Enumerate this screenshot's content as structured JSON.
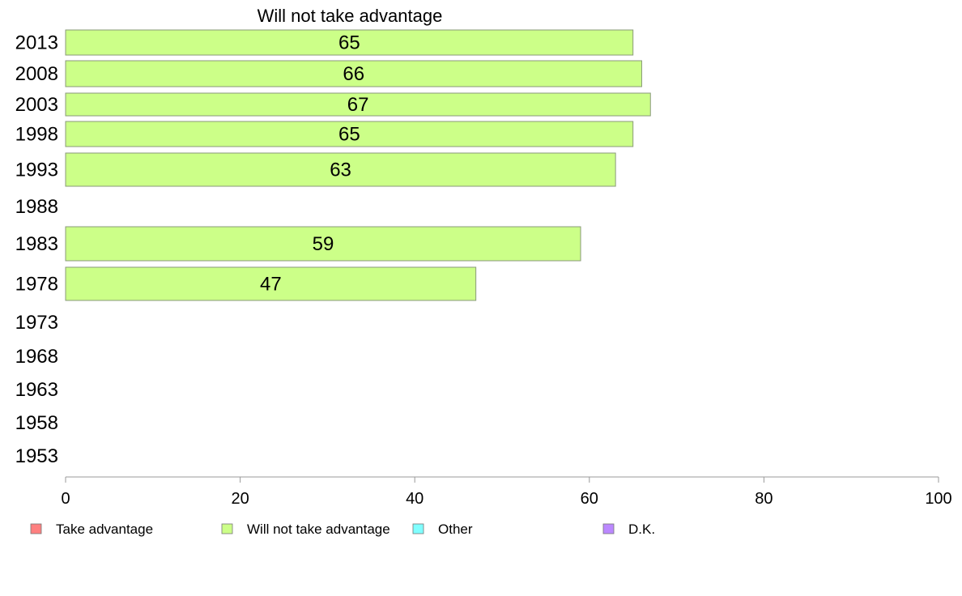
{
  "chart_data": {
    "type": "bar",
    "orientation": "horizontal",
    "title": "Will not take advantage",
    "categories": [
      "2013",
      "2008",
      "2003",
      "1998",
      "1993",
      "1988",
      "1983",
      "1978",
      "1973",
      "1968",
      "1963",
      "1958",
      "1953"
    ],
    "series": [
      {
        "name": "Take advantage",
        "color": "#ff8080",
        "values": [
          null,
          null,
          null,
          null,
          null,
          null,
          null,
          null,
          null,
          null,
          null,
          null,
          null
        ]
      },
      {
        "name": "Will not take advantage",
        "color": "#ccff88",
        "values": [
          65,
          66,
          67,
          65,
          63,
          null,
          59,
          47,
          null,
          null,
          null,
          null,
          null
        ]
      },
      {
        "name": "Other",
        "color": "#80ffff",
        "values": [
          null,
          null,
          null,
          null,
          null,
          null,
          null,
          null,
          null,
          null,
          null,
          null,
          null
        ]
      },
      {
        "name": "D.K.",
        "color": "#bb88ff",
        "values": [
          null,
          null,
          null,
          null,
          null,
          null,
          null,
          null,
          null,
          null,
          null,
          null,
          null
        ]
      }
    ],
    "xlim": [
      0,
      100
    ],
    "xticks": [
      0,
      20,
      40,
      60,
      80,
      100
    ],
    "grid": false,
    "legend_position": "bottom",
    "show_value_labels": true
  }
}
